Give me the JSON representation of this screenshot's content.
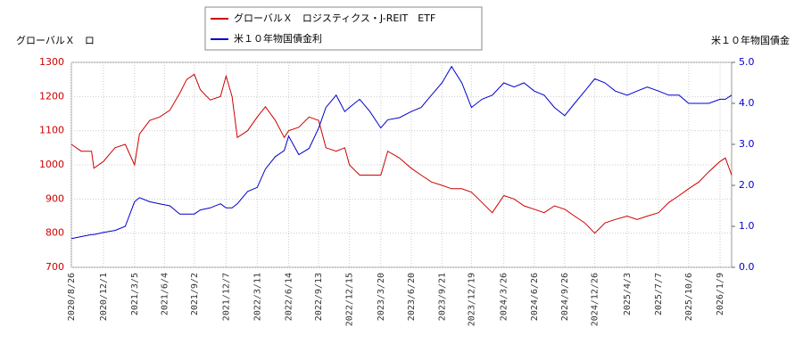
{
  "chart_data": {
    "type": "line",
    "y_label": "グローバルＸ　ロ",
    "y2_label": "米１０年物国債金",
    "x": [
      "2020/8/26",
      "2020/9/25",
      "2020/10/26",
      "2020/11/2",
      "2020/12/1",
      "2021/1/5",
      "2021/2/5",
      "2021/3/5",
      "2021/3/20",
      "2021/4/20",
      "2021/5/20",
      "2021/6/20",
      "2021/7/20",
      "2021/8/10",
      "2021/9/2",
      "2021/9/20",
      "2021/10/20",
      "2021/11/20",
      "2021/12/7",
      "2021/12/25",
      "2022/1/10",
      "2022/2/10",
      "2022/3/11",
      "2022/4/5",
      "2022/5/5",
      "2022/6/1",
      "2022/6/14",
      "2022/7/15",
      "2022/8/15",
      "2022/9/13",
      "2022/10/5",
      "2022/11/5",
      "2022/12/1",
      "2022/12/15",
      "2023/1/15",
      "2023/2/15",
      "2023/3/20",
      "2023/4/10",
      "2023/5/15",
      "2023/6/20",
      "2023/7/20",
      "2023/8/20",
      "2023/9/21",
      "2023/10/20",
      "2023/11/20",
      "2023/12/19",
      "2024/1/20",
      "2024/2/20",
      "2024/3/26",
      "2024/4/26",
      "2024/5/26",
      "2024/6/26",
      "2024/7/26",
      "2024/8/26",
      "2024/9/26",
      "2024/10/26",
      "2024/11/26",
      "2024/12/26",
      "2025/1/26",
      "2025/2/26",
      "2025/4/3",
      "2025/5/3",
      "2025/6/3",
      "2025/7/7",
      "2025/8/7",
      "2025/9/7",
      "2025/10/6",
      "2025/11/6",
      "2025/12/6",
      "2026/1/9",
      "2026/1/25",
      "2026/2/13"
    ],
    "series": [
      {
        "name": "グローバルＸ　ロジスティクス・J-REIT　ETF",
        "color": "#cc0000",
        "values": [
          1060,
          1040,
          1040,
          990,
          1010,
          1050,
          1060,
          1000,
          1090,
          1130,
          1140,
          1160,
          1210,
          1250,
          1265,
          1220,
          1190,
          1200,
          1260,
          1200,
          1080,
          1100,
          1140,
          1170,
          1130,
          1080,
          1100,
          1110,
          1140,
          1130,
          1050,
          1040,
          1050,
          1000,
          970,
          970,
          970,
          1040,
          1020,
          990,
          970,
          950,
          940,
          930,
          930,
          920,
          890,
          860,
          910,
          900,
          880,
          870,
          860,
          880,
          870,
          850,
          830,
          800,
          830,
          840,
          850,
          840,
          850,
          860,
          890,
          910,
          930,
          950,
          980,
          1010,
          1020,
          970
        ]
      },
      {
        "name": "米１０年物国債金利",
        "color": "#0000cc",
        "axis": "y2",
        "values": [
          0.7,
          0.75,
          0.8,
          0.8,
          0.85,
          0.9,
          1.0,
          1.6,
          1.7,
          1.6,
          1.55,
          1.5,
          1.3,
          1.3,
          1.3,
          1.4,
          1.45,
          1.55,
          1.45,
          1.45,
          1.55,
          1.85,
          1.95,
          2.4,
          2.7,
          2.85,
          3.2,
          2.75,
          2.9,
          3.4,
          3.9,
          4.2,
          3.8,
          3.9,
          4.1,
          3.8,
          3.4,
          3.6,
          3.65,
          3.8,
          3.9,
          4.2,
          4.5,
          4.9,
          4.5,
          3.9,
          4.1,
          4.2,
          4.5,
          4.4,
          4.5,
          4.3,
          4.2,
          3.9,
          3.7,
          4.0,
          4.3,
          4.6,
          4.5,
          4.3,
          4.2,
          4.3,
          4.4,
          4.3,
          4.2,
          4.2,
          4.0,
          4.0,
          4.0,
          4.1,
          4.1,
          4.2
        ]
      }
    ],
    "xlim": [
      "2020/8/26",
      "2026/2/13"
    ],
    "xticks": [
      "2020/8/26",
      "2020/12/1",
      "2021/3/5",
      "2021/6/4",
      "2021/9/2",
      "2021/12/7",
      "2022/3/11",
      "2022/6/14",
      "2022/9/13",
      "2022/12/15",
      "2023/3/20",
      "2023/6/20",
      "2023/9/21",
      "2023/12/19",
      "2024/3/26",
      "2024/6/26",
      "2024/9/26",
      "2024/12/26",
      "2025/4/3",
      "2025/7/7",
      "2025/10/6",
      "2026/1/9"
    ],
    "ylim": [
      700,
      1300
    ],
    "yticks": [
      700,
      800,
      900,
      1000,
      1100,
      1200,
      1300
    ],
    "y2lim": [
      0,
      5
    ],
    "y2ticks": [
      {
        "value": 0,
        "label": "0.0"
      },
      {
        "value": 1,
        "label": "1.0"
      },
      {
        "value": 2,
        "label": "2.0"
      },
      {
        "value": 3,
        "label": "3.0"
      },
      {
        "value": 4,
        "label": "4.0"
      },
      {
        "value": 5,
        "label": "5.0"
      }
    ],
    "y_color": "#cc0000",
    "y2_color": "#0000cc",
    "grid": true
  }
}
